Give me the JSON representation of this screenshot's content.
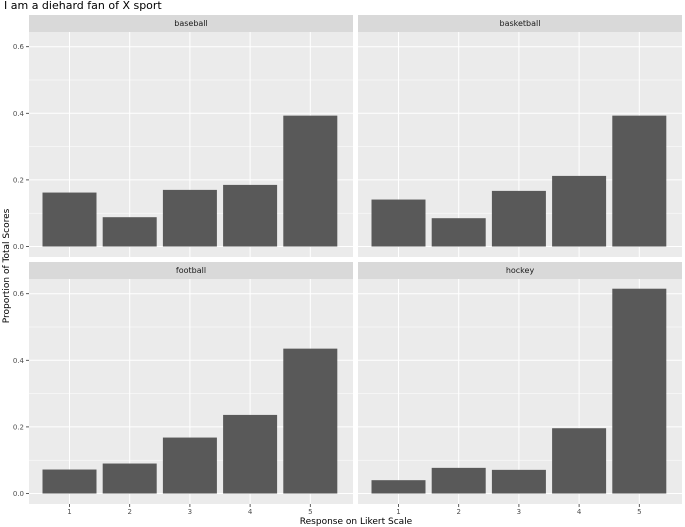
{
  "chart_data": {
    "type": "bar",
    "title": "I am a diehard fan of X sport",
    "xlabel": "Response on Likert Scale",
    "ylabel": "Proportion of Total Scores",
    "categories": [
      "1",
      "2",
      "3",
      "4",
      "5"
    ],
    "ylim": [
      0,
      0.66
    ],
    "yticks": [
      "0.0",
      "0.2",
      "0.4",
      "0.6"
    ],
    "grid": true,
    "panels": [
      {
        "name": "baseball",
        "values": [
          0.162,
          0.088,
          0.17,
          0.185,
          0.393
        ]
      },
      {
        "name": "basketball",
        "values": [
          0.141,
          0.085,
          0.167,
          0.212,
          0.393
        ]
      },
      {
        "name": "football",
        "values": [
          0.072,
          0.09,
          0.168,
          0.236,
          0.435
        ]
      },
      {
        "name": "hockey",
        "values": [
          0.04,
          0.077,
          0.071,
          0.196,
          0.615
        ]
      }
    ],
    "colors": {
      "bar": "#595959",
      "panel_bg": "#ebebeb",
      "strip_bg": "#d9d9d9",
      "grid": "#ffffff"
    }
  }
}
